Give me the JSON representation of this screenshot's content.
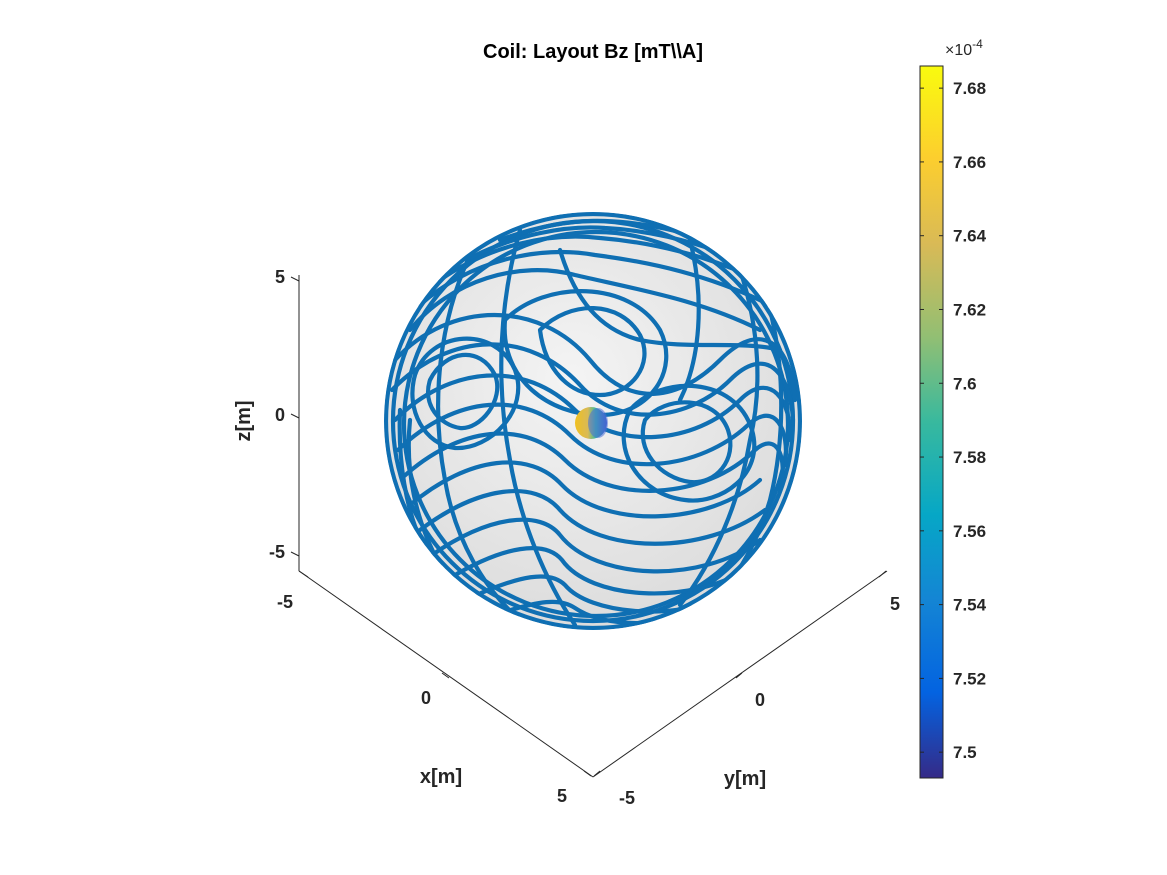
{
  "chart_data": {
    "type": "surface-3d",
    "title": "Coil: Layout Bz [mT\\\\A]",
    "xlabel": "x[m]",
    "ylabel": "y[m]",
    "zlabel": "z[m]",
    "axes": {
      "x": {
        "ticks": [
          -5,
          0,
          5
        ],
        "tick_labels": [
          "-5",
          "0",
          "5"
        ]
      },
      "y": {
        "ticks": [
          -5,
          0,
          5
        ],
        "tick_labels": [
          "-5",
          "0",
          "5"
        ]
      },
      "z": {
        "ticks": [
          -5,
          0,
          5
        ],
        "tick_labels": [
          "-5",
          "0",
          "5"
        ]
      }
    },
    "sphere_radius": 5,
    "target_sphere_radius": 0.25,
    "coil_color": "#0f6fb3",
    "sphere_color": "#e8e8e8",
    "colorbar": {
      "colormap": "parula",
      "exponent_label": "×10",
      "exponent": "-4",
      "range": [
        7.493,
        7.686
      ],
      "tick_values": [
        7.5,
        7.52,
        7.54,
        7.56,
        7.58,
        7.6,
        7.62,
        7.64,
        7.66,
        7.68
      ],
      "tick_labels": [
        "7.5",
        "7.52",
        "7.54",
        "7.56",
        "7.58",
        "7.6",
        "7.62",
        "7.64",
        "7.66",
        "7.68"
      ]
    }
  }
}
